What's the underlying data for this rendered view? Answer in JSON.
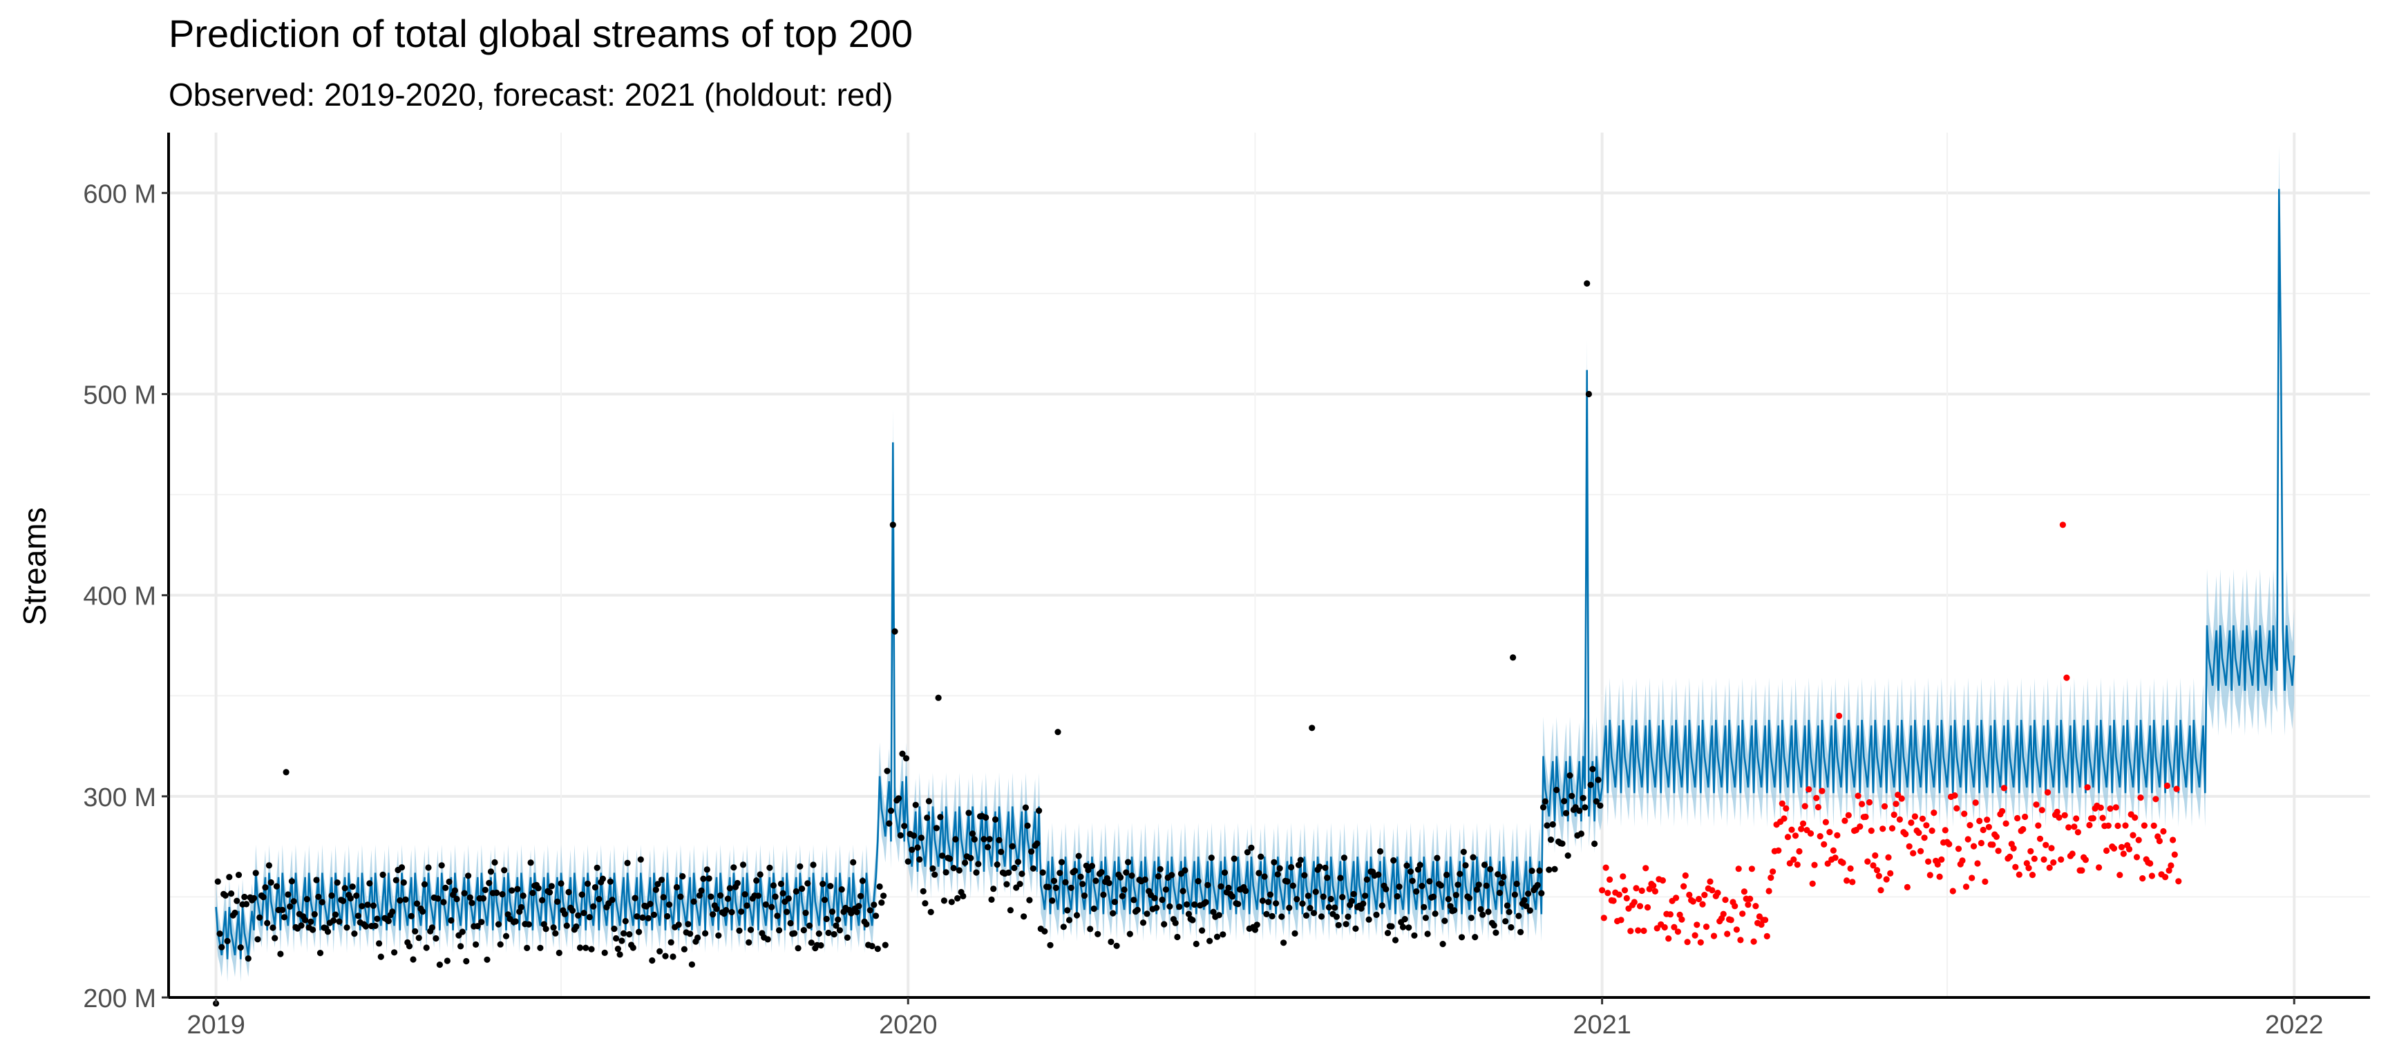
{
  "chart_data": {
    "type": "scatter",
    "title": "Prediction of total global streams of top 200",
    "subtitle": "Observed: 2019-2020, forecast: 2021 (holdout: red)",
    "xlabel": "",
    "ylabel": "Streams",
    "x_ticks": [
      "2019",
      "2020",
      "2021",
      "2022"
    ],
    "y_ticks": [
      "200 M",
      "300 M",
      "400 M",
      "500 M",
      "600 M"
    ],
    "xlim": [
      "2018-12-07",
      "2022-02-10"
    ],
    "ylim": [
      200000000,
      630000000
    ],
    "grid": true,
    "series": [
      {
        "role": "observed",
        "mark": "point",
        "color": "#000000",
        "segments": [
          {
            "from": "2019-01-01",
            "to": "2019-12-20",
            "base": 238000000,
            "amplitude": 16000000,
            "noise": 18000000
          },
          {
            "from": "2019-12-21",
            "to": "2019-12-31",
            "base": 290000000,
            "amplitude": 20000000,
            "noise": 20000000
          },
          {
            "from": "2020-01-01",
            "to": "2020-03-10",
            "base": 265000000,
            "amplitude": 20000000,
            "noise": 20000000
          },
          {
            "from": "2020-03-11",
            "to": "2020-11-30",
            "base": 245000000,
            "amplitude": 17000000,
            "noise": 16000000
          },
          {
            "from": "2020-12-01",
            "to": "2020-12-31",
            "base": 285000000,
            "amplitude": 22000000,
            "noise": 18000000
          }
        ],
        "highlights": [
          {
            "x": "2019-01-01",
            "y": 197000000
          },
          {
            "x": "2019-02-07",
            "y": 312000000
          },
          {
            "x": "2019-12-24",
            "y": 435000000
          },
          {
            "x": "2019-12-25",
            "y": 382000000
          },
          {
            "x": "2020-01-17",
            "y": 349000000
          },
          {
            "x": "2020-03-20",
            "y": 332000000
          },
          {
            "x": "2020-08-01",
            "y": 334000000
          },
          {
            "x": "2020-11-15",
            "y": 369000000
          },
          {
            "x": "2020-12-24",
            "y": 555000000
          },
          {
            "x": "2020-12-25",
            "y": 500000000
          }
        ]
      },
      {
        "role": "holdout",
        "mark": "point",
        "color": "#ff0000",
        "segments": [
          {
            "from": "2021-01-01",
            "to": "2021-03-31",
            "base": 243000000,
            "amplitude": 12000000,
            "noise": 14000000
          },
          {
            "from": "2021-04-01",
            "to": "2021-06-15",
            "base": 275000000,
            "amplitude": 18000000,
            "noise": 20000000
          },
          {
            "from": "2021-06-16",
            "to": "2021-11-01",
            "base": 275000000,
            "amplitude": 15000000,
            "noise": 20000000
          }
        ],
        "highlights": [
          {
            "x": "2021-09-01",
            "y": 435000000
          },
          {
            "x": "2021-09-03",
            "y": 359000000
          },
          {
            "x": "2021-05-06",
            "y": 340000000
          }
        ]
      },
      {
        "role": "forecast",
        "mark": "line-with-interval",
        "color": "#0072b2",
        "band_color": "#9ecae1",
        "segments": [
          {
            "from": "2019-01-01",
            "to": "2019-01-20",
            "base": 225000000,
            "amplitude": 20000000,
            "band": 10000000
          },
          {
            "from": "2019-01-21",
            "to": "2019-12-15",
            "base": 240000000,
            "amplitude": 22000000,
            "band": 10000000
          },
          {
            "from": "2019-12-16",
            "to": "2019-12-31",
            "base": 285000000,
            "amplitude": 25000000,
            "band": 12000000
          },
          {
            "from": "2020-01-01",
            "to": "2020-03-10",
            "base": 270000000,
            "amplitude": 25000000,
            "band": 12000000
          },
          {
            "from": "2020-03-11",
            "to": "2020-11-30",
            "base": 248000000,
            "amplitude": 22000000,
            "band": 12000000
          },
          {
            "from": "2020-12-01",
            "to": "2020-12-31",
            "base": 295000000,
            "amplitude": 25000000,
            "band": 14000000
          },
          {
            "from": "2021-01-01",
            "to": "2021-11-15",
            "base": 310000000,
            "amplitude": 28000000,
            "band": 15000000
          },
          {
            "from": "2021-11-16",
            "to": "2022-01-01",
            "base": 360000000,
            "amplitude": 25000000,
            "band": 20000000
          }
        ],
        "spikes": [
          {
            "x": "2019-12-24",
            "y": 476000000
          },
          {
            "x": "2020-12-24",
            "y": 512000000
          },
          {
            "x": "2021-12-24",
            "y": 602000000
          },
          {
            "x": "2021-12-25",
            "y": 520000000
          }
        ]
      }
    ]
  }
}
